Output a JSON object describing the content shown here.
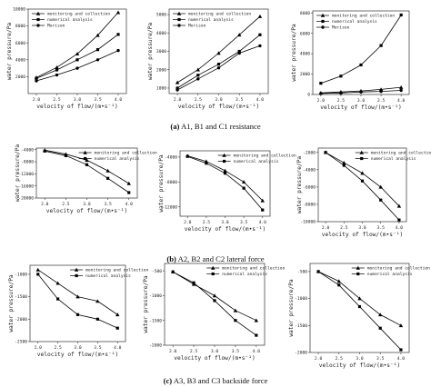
{
  "captions": [
    {
      "label": "(a)",
      "text": "A1, B1 and C1 resistance"
    },
    {
      "label": "(b)",
      "text": "A2, B2 and C2 lateral force"
    },
    {
      "label": "(c)",
      "text": "A3, B3 and C3 backside force"
    }
  ],
  "chart_data": [
    {
      "type": "line",
      "xlabel": "velocity of flow/(m•s⁻¹)",
      "ylabel": "water pressure/Pa",
      "x": [
        2.0,
        2.5,
        3.0,
        3.5,
        4.0
      ],
      "xticks": [
        "2.0",
        "2.5",
        "3.0",
        "3.5",
        "4.0"
      ],
      "ylim": [
        0,
        10000
      ],
      "yticks": [
        2000,
        4000,
        6000,
        8000,
        10000
      ],
      "legend": "top-left",
      "series": [
        {
          "name": "monitoring and collection",
          "marker": "triangle",
          "values": [
            1900,
            3100,
            4700,
            6900,
            9600
          ]
        },
        {
          "name": "numerical analysis",
          "marker": "square",
          "values": [
            1800,
            2800,
            4000,
            5200,
            7000
          ]
        },
        {
          "name": "Morison",
          "marker": "circle",
          "values": [
            1500,
            2200,
            3000,
            4000,
            5100
          ]
        }
      ]
    },
    {
      "type": "line",
      "xlabel": "velocity of flow/(m•s⁻¹)",
      "ylabel": "water pressure/Pa",
      "x": [
        2.0,
        2.5,
        3.0,
        3.5,
        4.0
      ],
      "xticks": [
        "2.0",
        "2.5",
        "3.0",
        "3.5",
        "4.0"
      ],
      "ylim": [
        700,
        5300
      ],
      "yticks": [
        1000,
        2000,
        3000,
        4000,
        5000
      ],
      "legend": "top-left",
      "series": [
        {
          "name": "monitoring and collection",
          "marker": "triangle",
          "values": [
            1300,
            2000,
            2900,
            3900,
            4900
          ]
        },
        {
          "name": "numerical analysis",
          "marker": "square",
          "values": [
            1000,
            1700,
            2300,
            3000,
            3900
          ]
        },
        {
          "name": "Morison",
          "marker": "circle",
          "values": [
            900,
            1500,
            2100,
            2900,
            3300
          ]
        }
      ]
    },
    {
      "type": "line",
      "xlabel": "velocity of flow/(m•s⁻¹)",
      "ylabel": "water pressure/Pa",
      "x": [
        2.0,
        2.5,
        3.0,
        3.5,
        4.0
      ],
      "xticks": [
        "2.0",
        "2.5",
        "3.0",
        "3.5",
        "4.0"
      ],
      "ylim": [
        0,
        8200
      ],
      "yticks": [
        0,
        2000,
        4000,
        6000,
        8000
      ],
      "legend": "top-left",
      "series": [
        {
          "name": "monitoring and collection",
          "marker": "triangle",
          "values": [
            150,
            250,
            350,
            500,
            700
          ]
        },
        {
          "name": "numerical analysis",
          "marker": "square",
          "values": [
            1100,
            1800,
            2900,
            4800,
            7800
          ]
        },
        {
          "name": "Morison",
          "marker": "circle",
          "values": [
            100,
            150,
            250,
            300,
            400
          ]
        }
      ]
    },
    {
      "type": "line",
      "xlabel": "velocity of flow/(m•s⁻¹)",
      "ylabel": "water pressure/Pa",
      "x": [
        2.0,
        2.5,
        3.0,
        3.5,
        4.0
      ],
      "xticks": [
        "2.0",
        "2.5",
        "3.0",
        "3.5",
        "4.0"
      ],
      "ylim": [
        -20000,
        -3500
      ],
      "yticks": [
        -20000,
        -16000,
        -12000,
        -8000,
        -4000
      ],
      "legend": "top-right",
      "series": [
        {
          "name": "monitoring and collection",
          "marker": "triangle",
          "values": [
            -4200,
            -5500,
            -7500,
            -11000,
            -15200
          ]
        },
        {
          "name": "numerical analysis",
          "marker": "square",
          "values": [
            -4500,
            -6000,
            -9000,
            -13500,
            -18200
          ]
        }
      ]
    },
    {
      "type": "line",
      "xlabel": "velocity of flow/(m•s⁻¹)",
      "ylabel": "water pressure/Pa",
      "x": [
        2.0,
        2.5,
        3.0,
        3.5,
        4.0
      ],
      "xticks": [
        "2.0",
        "2.5",
        "3.0",
        "3.5",
        "4.0"
      ],
      "ylim": [
        -13500,
        -3000
      ],
      "yticks": [
        -12000,
        -8000,
        -4000
      ],
      "legend": "top-right",
      "series": [
        {
          "name": "monitoring and collection",
          "marker": "triangle",
          "values": [
            -3800,
            -4700,
            -6200,
            -8000,
            -11000
          ]
        },
        {
          "name": "numerical analysis",
          "marker": "square",
          "values": [
            -3900,
            -5000,
            -6600,
            -9000,
            -12500
          ]
        }
      ]
    },
    {
      "type": "line",
      "xlabel": "velocity of flow/(m•s⁻¹)",
      "ylabel": "water pressure/Pa",
      "x": [
        2.0,
        2.5,
        3.0,
        3.5,
        4.0
      ],
      "xticks": [
        "2.0",
        "2.5",
        "3.0",
        "3.5",
        "4.0"
      ],
      "ylim": [
        -10000,
        -1500
      ],
      "yticks": [
        -10000,
        -8000,
        -6000,
        -4000,
        -2000
      ],
      "legend": "top-right",
      "series": [
        {
          "name": "monitoring and collection",
          "marker": "triangle",
          "values": [
            -2000,
            -3200,
            -4400,
            -6000,
            -8200
          ]
        },
        {
          "name": "numerical analysis",
          "marker": "square",
          "values": [
            -2000,
            -3500,
            -5300,
            -7500,
            -9800
          ]
        }
      ]
    },
    {
      "type": "line",
      "xlabel": "velocity of flow/(m•s⁻¹)",
      "ylabel": "water pressure/Pa",
      "x": [
        2.0,
        2.5,
        3.0,
        3.5,
        4.0
      ],
      "xticks": [
        "2.0",
        "2.5",
        "3.0",
        "3.5",
        "4.0"
      ],
      "ylim": [
        -2500,
        -800
      ],
      "yticks": [
        -2500,
        -2000,
        -1500,
        -1000
      ],
      "legend": "top-right",
      "series": [
        {
          "name": "monitoring and collection",
          "marker": "triangle",
          "values": [
            -900,
            -1200,
            -1500,
            -1600,
            -1900
          ]
        },
        {
          "name": "numerical analysis",
          "marker": "square",
          "values": [
            -1000,
            -1550,
            -1900,
            -2000,
            -2200
          ]
        }
      ]
    },
    {
      "type": "line",
      "xlabel": "velocity of flow/(m•s⁻¹)",
      "ylabel": "water pressure/Pa",
      "x": [
        2.0,
        2.5,
        3.0,
        3.5,
        4.0
      ],
      "xticks": [
        "2.0",
        "2.5",
        "3.0",
        "3.5",
        "4.0"
      ],
      "ylim": [
        -2000,
        -350
      ],
      "yticks": [
        -2000,
        -1500,
        -1000,
        -500
      ],
      "legend": "top-right",
      "series": [
        {
          "name": "monitoring and collection",
          "marker": "triangle",
          "values": [
            -520,
            -770,
            -1000,
            -1300,
            -1500
          ]
        },
        {
          "name": "numerical analysis",
          "marker": "square",
          "values": [
            -520,
            -740,
            -1100,
            -1500,
            -1800
          ]
        }
      ]
    },
    {
      "type": "line",
      "xlabel": "velocity of flow/(m•s⁻¹)",
      "ylabel": "water pressure/Pa",
      "x": [
        2.0,
        2.5,
        3.0,
        3.5,
        4.0
      ],
      "xticks": [
        "2.0",
        "2.5",
        "3.0",
        "3.5",
        "4.0"
      ],
      "ylim": [
        -2000,
        -350
      ],
      "yticks": [
        -2000,
        -1500,
        -1000,
        -500
      ],
      "legend": "top-right",
      "series": [
        {
          "name": "monitoring and collection",
          "marker": "triangle",
          "values": [
            -500,
            -680,
            -1000,
            -1300,
            -1500
          ]
        },
        {
          "name": "numerical analysis",
          "marker": "square",
          "values": [
            -500,
            -750,
            -1150,
            -1550,
            -1950
          ]
        }
      ]
    }
  ]
}
